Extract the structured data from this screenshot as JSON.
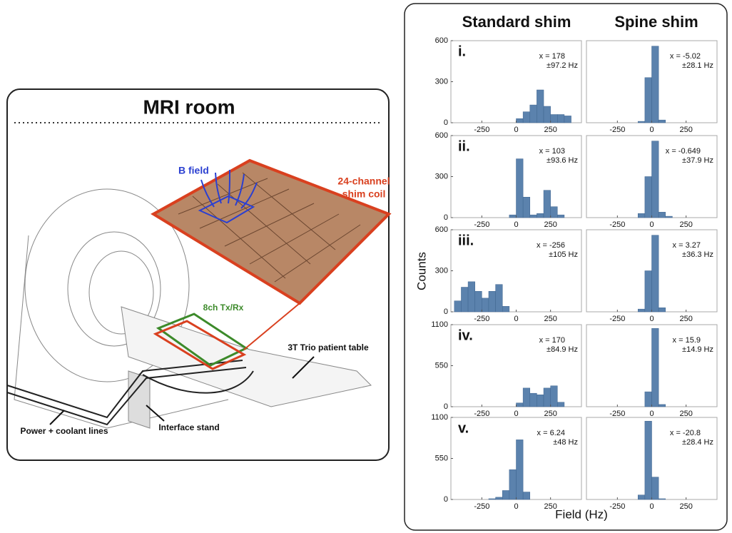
{
  "diagram": {
    "title": "MRI room",
    "b_field": "B field",
    "coil_label": [
      "24-channel",
      "shim coil"
    ],
    "txrx": "8ch Tx/Rx",
    "table": "3T Trio patient table",
    "power": "Power + coolant lines",
    "stand": "Interface stand"
  },
  "figure": {
    "column_titles": [
      "Standard shim",
      "Spine shim"
    ],
    "ylabel": "Counts",
    "xlabel": "Field (Hz)"
  },
  "chart_data": [
    {
      "type": "histogram",
      "label": "i.",
      "annotation": [
        "x = 178",
        "±97.2 Hz"
      ],
      "color": "#5b82ad",
      "xlim": [
        -475,
        475
      ],
      "xticks": [
        -250,
        0,
        250
      ],
      "ylim": [
        0,
        600
      ],
      "yticks": [
        0,
        300,
        600
      ],
      "bins": [
        -450,
        -400,
        -350,
        -300,
        -250,
        -200,
        -150,
        -100,
        -50,
        0,
        50,
        100,
        150,
        200,
        250,
        300,
        350,
        400,
        450
      ],
      "counts": [
        0,
        0,
        0,
        0,
        0,
        0,
        0,
        0,
        0,
        30,
        80,
        130,
        240,
        120,
        60,
        60,
        50,
        0
      ]
    },
    {
      "type": "histogram",
      "annotation": [
        "x = -5.02",
        "±28.1 Hz"
      ],
      "color": "#5b82ad",
      "xlim": [
        -475,
        475
      ],
      "xticks": [
        -250,
        0,
        250
      ],
      "ylim": [
        0,
        600
      ],
      "bins": [
        -450,
        -400,
        -350,
        -300,
        -250,
        -200,
        -150,
        -100,
        -50,
        0,
        50,
        100,
        150,
        200,
        250,
        300,
        350,
        400,
        450
      ],
      "counts": [
        0,
        0,
        0,
        0,
        0,
        0,
        0,
        10,
        330,
        560,
        20,
        0,
        0,
        0,
        0,
        0,
        0,
        0
      ]
    },
    {
      "type": "histogram",
      "label": "ii.",
      "annotation": [
        "x = 103",
        "±93.6 Hz"
      ],
      "color": "#5b82ad",
      "xlim": [
        -475,
        475
      ],
      "xticks": [
        -250,
        0,
        250
      ],
      "ylim": [
        0,
        600
      ],
      "yticks": [
        0,
        300,
        600
      ],
      "bins": [
        -450,
        -400,
        -350,
        -300,
        -250,
        -200,
        -150,
        -100,
        -50,
        0,
        50,
        100,
        150,
        200,
        250,
        300,
        350,
        400,
        450
      ],
      "counts": [
        0,
        0,
        0,
        0,
        0,
        0,
        0,
        0,
        20,
        430,
        150,
        20,
        30,
        200,
        80,
        20,
        0,
        0
      ]
    },
    {
      "type": "histogram",
      "annotation": [
        "x = -0.649",
        "±37.9 Hz"
      ],
      "color": "#5b82ad",
      "xlim": [
        -475,
        475
      ],
      "xticks": [
        -250,
        0,
        250
      ],
      "ylim": [
        0,
        600
      ],
      "bins": [
        -450,
        -400,
        -350,
        -300,
        -250,
        -200,
        -150,
        -100,
        -50,
        0,
        50,
        100,
        150,
        200,
        250,
        300,
        350,
        400,
        450
      ],
      "counts": [
        0,
        0,
        0,
        0,
        0,
        0,
        0,
        30,
        300,
        560,
        40,
        10,
        0,
        0,
        0,
        0,
        0,
        0
      ]
    },
    {
      "type": "histogram",
      "label": "iii.",
      "annotation": [
        "x = -256",
        "±105 Hz"
      ],
      "color": "#5b82ad",
      "xlim": [
        -475,
        475
      ],
      "xticks": [
        -250,
        0,
        250
      ],
      "ylim": [
        0,
        600
      ],
      "yticks": [
        0,
        300,
        600
      ],
      "bins": [
        -450,
        -400,
        -350,
        -300,
        -250,
        -200,
        -150,
        -100,
        -50,
        0,
        50,
        100,
        150,
        200,
        250,
        300,
        350,
        400,
        450
      ],
      "counts": [
        80,
        180,
        220,
        150,
        100,
        150,
        200,
        40,
        0,
        0,
        0,
        0,
        0,
        0,
        0,
        0,
        0,
        0
      ]
    },
    {
      "type": "histogram",
      "annotation": [
        "x = 3.27",
        "±36.3 Hz"
      ],
      "color": "#5b82ad",
      "xlim": [
        -475,
        475
      ],
      "xticks": [
        -250,
        0,
        250
      ],
      "ylim": [
        0,
        600
      ],
      "bins": [
        -450,
        -400,
        -350,
        -300,
        -250,
        -200,
        -150,
        -100,
        -50,
        0,
        50,
        100,
        150,
        200,
        250,
        300,
        350,
        400,
        450
      ],
      "counts": [
        0,
        0,
        0,
        0,
        0,
        0,
        0,
        20,
        300,
        560,
        30,
        0,
        0,
        0,
        0,
        0,
        0,
        0
      ]
    },
    {
      "type": "histogram",
      "label": "iv.",
      "annotation": [
        "x = 170",
        "±84.9 Hz"
      ],
      "color": "#5b82ad",
      "xlim": [
        -475,
        475
      ],
      "xticks": [
        -250,
        0,
        250
      ],
      "ylim": [
        0,
        1100
      ],
      "yticks": [
        0,
        550,
        1100
      ],
      "bins": [
        -450,
        -400,
        -350,
        -300,
        -250,
        -200,
        -150,
        -100,
        -50,
        0,
        50,
        100,
        150,
        200,
        250,
        300,
        350,
        400,
        450
      ],
      "counts": [
        0,
        0,
        0,
        0,
        0,
        0,
        0,
        0,
        0,
        50,
        250,
        180,
        160,
        250,
        280,
        60,
        0,
        0
      ]
    },
    {
      "type": "histogram",
      "annotation": [
        "x = 15.9",
        "±14.9 Hz"
      ],
      "color": "#5b82ad",
      "xlim": [
        -475,
        475
      ],
      "xticks": [
        -250,
        0,
        250
      ],
      "ylim": [
        0,
        1100
      ],
      "bins": [
        -450,
        -400,
        -350,
        -300,
        -250,
        -200,
        -150,
        -100,
        -50,
        0,
        50,
        100,
        150,
        200,
        250,
        300,
        350,
        400,
        450
      ],
      "counts": [
        0,
        0,
        0,
        0,
        0,
        0,
        0,
        0,
        200,
        1050,
        30,
        0,
        0,
        0,
        0,
        0,
        0,
        0
      ]
    },
    {
      "type": "histogram",
      "label": "v.",
      "annotation": [
        "x = 6.24",
        "±48 Hz"
      ],
      "color": "#5b82ad",
      "xlim": [
        -475,
        475
      ],
      "xticks": [
        -250,
        0,
        250
      ],
      "ylim": [
        0,
        1100
      ],
      "yticks": [
        0,
        550,
        1100
      ],
      "bins": [
        -450,
        -400,
        -350,
        -300,
        -250,
        -200,
        -150,
        -100,
        -50,
        0,
        50,
        100,
        150,
        200,
        250,
        300,
        350,
        400,
        450
      ],
      "counts": [
        0,
        0,
        0,
        0,
        0,
        10,
        30,
        120,
        400,
        800,
        100,
        0,
        0,
        0,
        0,
        0,
        0,
        0
      ]
    },
    {
      "type": "histogram",
      "annotation": [
        "x = -20.8",
        "±28.4 Hz"
      ],
      "color": "#5b82ad",
      "xlim": [
        -475,
        475
      ],
      "xticks": [
        -250,
        0,
        250
      ],
      "ylim": [
        0,
        1100
      ],
      "bins": [
        -450,
        -400,
        -350,
        -300,
        -250,
        -200,
        -150,
        -100,
        -50,
        0,
        50,
        100,
        150,
        200,
        250,
        300,
        350,
        400,
        450
      ],
      "counts": [
        0,
        0,
        0,
        0,
        0,
        0,
        0,
        60,
        1050,
        300,
        10,
        0,
        0,
        0,
        0,
        0,
        0,
        0
      ]
    }
  ]
}
